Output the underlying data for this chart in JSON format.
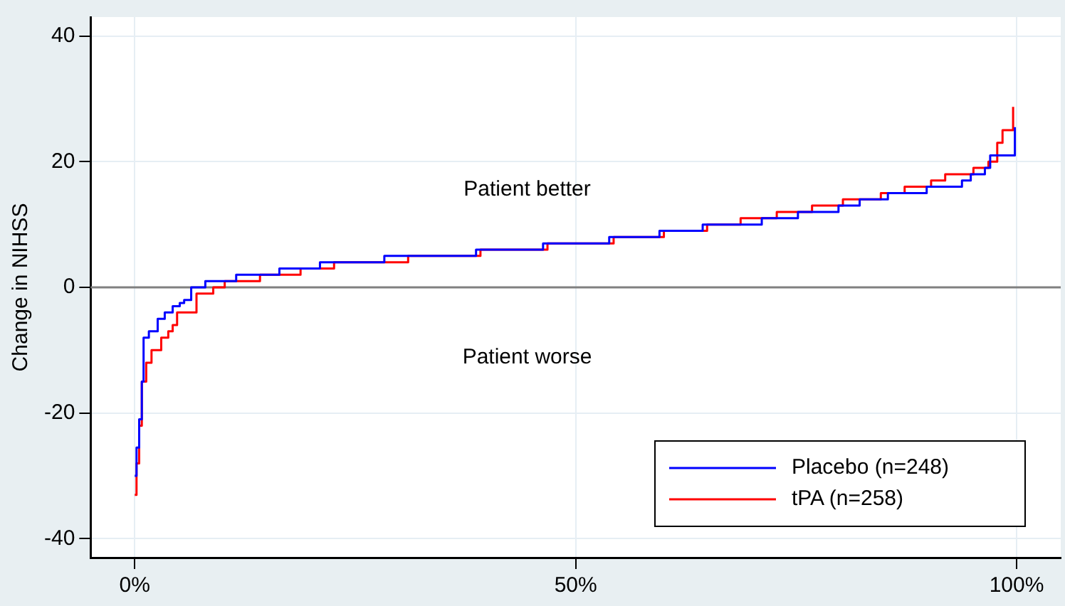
{
  "chart_data": {
    "type": "step",
    "ylabel": "Change in NIHSS",
    "xlim": [
      -5,
      105
    ],
    "ylim": [
      -43,
      43
    ],
    "xticks": [
      {
        "value": 0,
        "label": "0%"
      },
      {
        "value": 50,
        "label": "50%"
      },
      {
        "value": 100,
        "label": "100%"
      }
    ],
    "yticks": [
      -40,
      -20,
      0,
      20,
      40
    ],
    "grid": true,
    "legend": "bottom right",
    "ref_lines": [
      {
        "axis": "y",
        "value": 0,
        "color": "#808080"
      }
    ],
    "annotations": [
      "Patient better",
      "Patient worse"
    ],
    "series": [
      {
        "name": "Placebo (n=248)",
        "color": "#0000ff",
        "x": [
          0,
          0.2,
          0.5,
          0.8,
          1,
          1.6,
          2.6,
          3.4,
          4.3,
          5.1,
          5.6,
          6.4,
          8,
          11.5,
          16.4,
          21,
          28.3,
          38.7,
          46.3,
          53.8,
          59.5,
          64.4,
          71.1,
          75.2,
          79.8,
          82.2,
          85.4,
          89.8,
          93.8,
          94.8,
          96.4,
          97,
          98.6,
          99.8
        ],
        "values": [
          -30,
          -25.5,
          -21,
          -15,
          -8,
          -7,
          -5,
          -4,
          -3,
          -2.5,
          -2,
          0,
          1,
          2,
          3,
          4,
          5,
          6,
          7,
          8,
          9,
          10,
          11,
          12,
          13,
          14,
          15,
          16,
          17,
          18,
          19,
          21,
          21,
          25.5
        ]
      },
      {
        "name": "tPA (n=258)",
        "color": "#ff0000",
        "x": [
          0,
          0.2,
          0.5,
          0.8,
          1.3,
          1.9,
          3,
          3.8,
          4.3,
          4.8,
          7,
          8.9,
          10.2,
          14.2,
          18.8,
          22.6,
          31,
          39.2,
          46.8,
          54.3,
          60,
          64.9,
          68.7,
          72.8,
          76.8,
          80.3,
          84.6,
          87.3,
          90.3,
          91.9,
          95.1,
          96.8,
          97.8,
          98.4,
          99.6
        ],
        "values": [
          -33,
          -28,
          -22,
          -15,
          -12,
          -10,
          -8,
          -7,
          -6,
          -4,
          -1,
          0,
          1,
          2,
          3,
          4,
          5,
          6,
          7,
          8,
          9,
          10,
          11,
          12,
          13,
          14,
          15,
          16,
          17,
          18,
          19,
          20,
          23,
          25,
          28.7
        ]
      }
    ]
  }
}
